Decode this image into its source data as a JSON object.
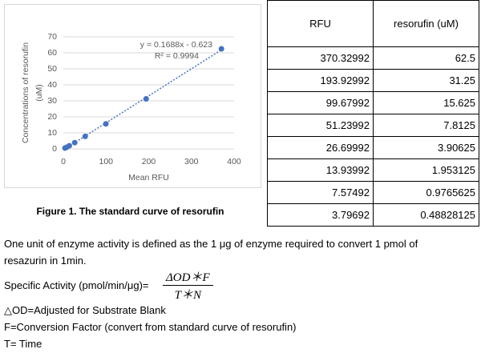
{
  "chart_data": {
    "type": "scatter",
    "x_label": "Mean RFU",
    "y_label": [
      "Concentrations of resorufin",
      "(uM)"
    ],
    "x": [
      370.32992,
      193.92992,
      99.67992,
      51.23992,
      26.69992,
      13.93992,
      7.57492,
      3.79692
    ],
    "values": [
      62.5,
      31.25,
      15.625,
      7.8125,
      3.90625,
      1.953125,
      0.9765625,
      0.48828125
    ],
    "color": "#4472c4",
    "xlim": [
      0,
      400
    ],
    "xticks": [
      0,
      100,
      200,
      300,
      400
    ],
    "ylim": [
      0,
      70
    ],
    "yticks": [
      0,
      10,
      20,
      30,
      40,
      50,
      60,
      70
    ],
    "grid": true,
    "trendline": {
      "label": "y = 0.1688x - 0.623",
      "r2_label": "R² = 0.9994",
      "slope": 0.1688,
      "intercept": -0.623
    },
    "caption": "Figure 1. The standard curve of resorufin"
  },
  "table": {
    "header": [
      "RFU",
      "resorufin (uM)"
    ],
    "rows": [
      [
        "370.32992",
        "62.5"
      ],
      [
        "193.92992",
        "31.25"
      ],
      [
        "99.67992",
        "15.625"
      ],
      [
        "51.23992",
        "7.8125"
      ],
      [
        "26.69992",
        "3.90625"
      ],
      [
        "13.93992",
        "1.953125"
      ],
      [
        "7.57492",
        "0.9765625"
      ],
      [
        "3.79692",
        "0.48828125"
      ]
    ]
  },
  "text": {
    "definition": [
      "One unit of enzyme activity is defined as the 1 μg of enzyme required to convert 1 pmol of",
      "resazurin in 1min."
    ],
    "formula": {
      "label": "Specific Activity (pmol/min/μg)=",
      "numerator": "ΔOD＊F",
      "denominator": "T＊N"
    },
    "notes": [
      "△OD=Adjusted for Substrate Blank",
      "F=Conversion Factor (convert from standard curve of resorufin)",
      "T= Time"
    ]
  }
}
